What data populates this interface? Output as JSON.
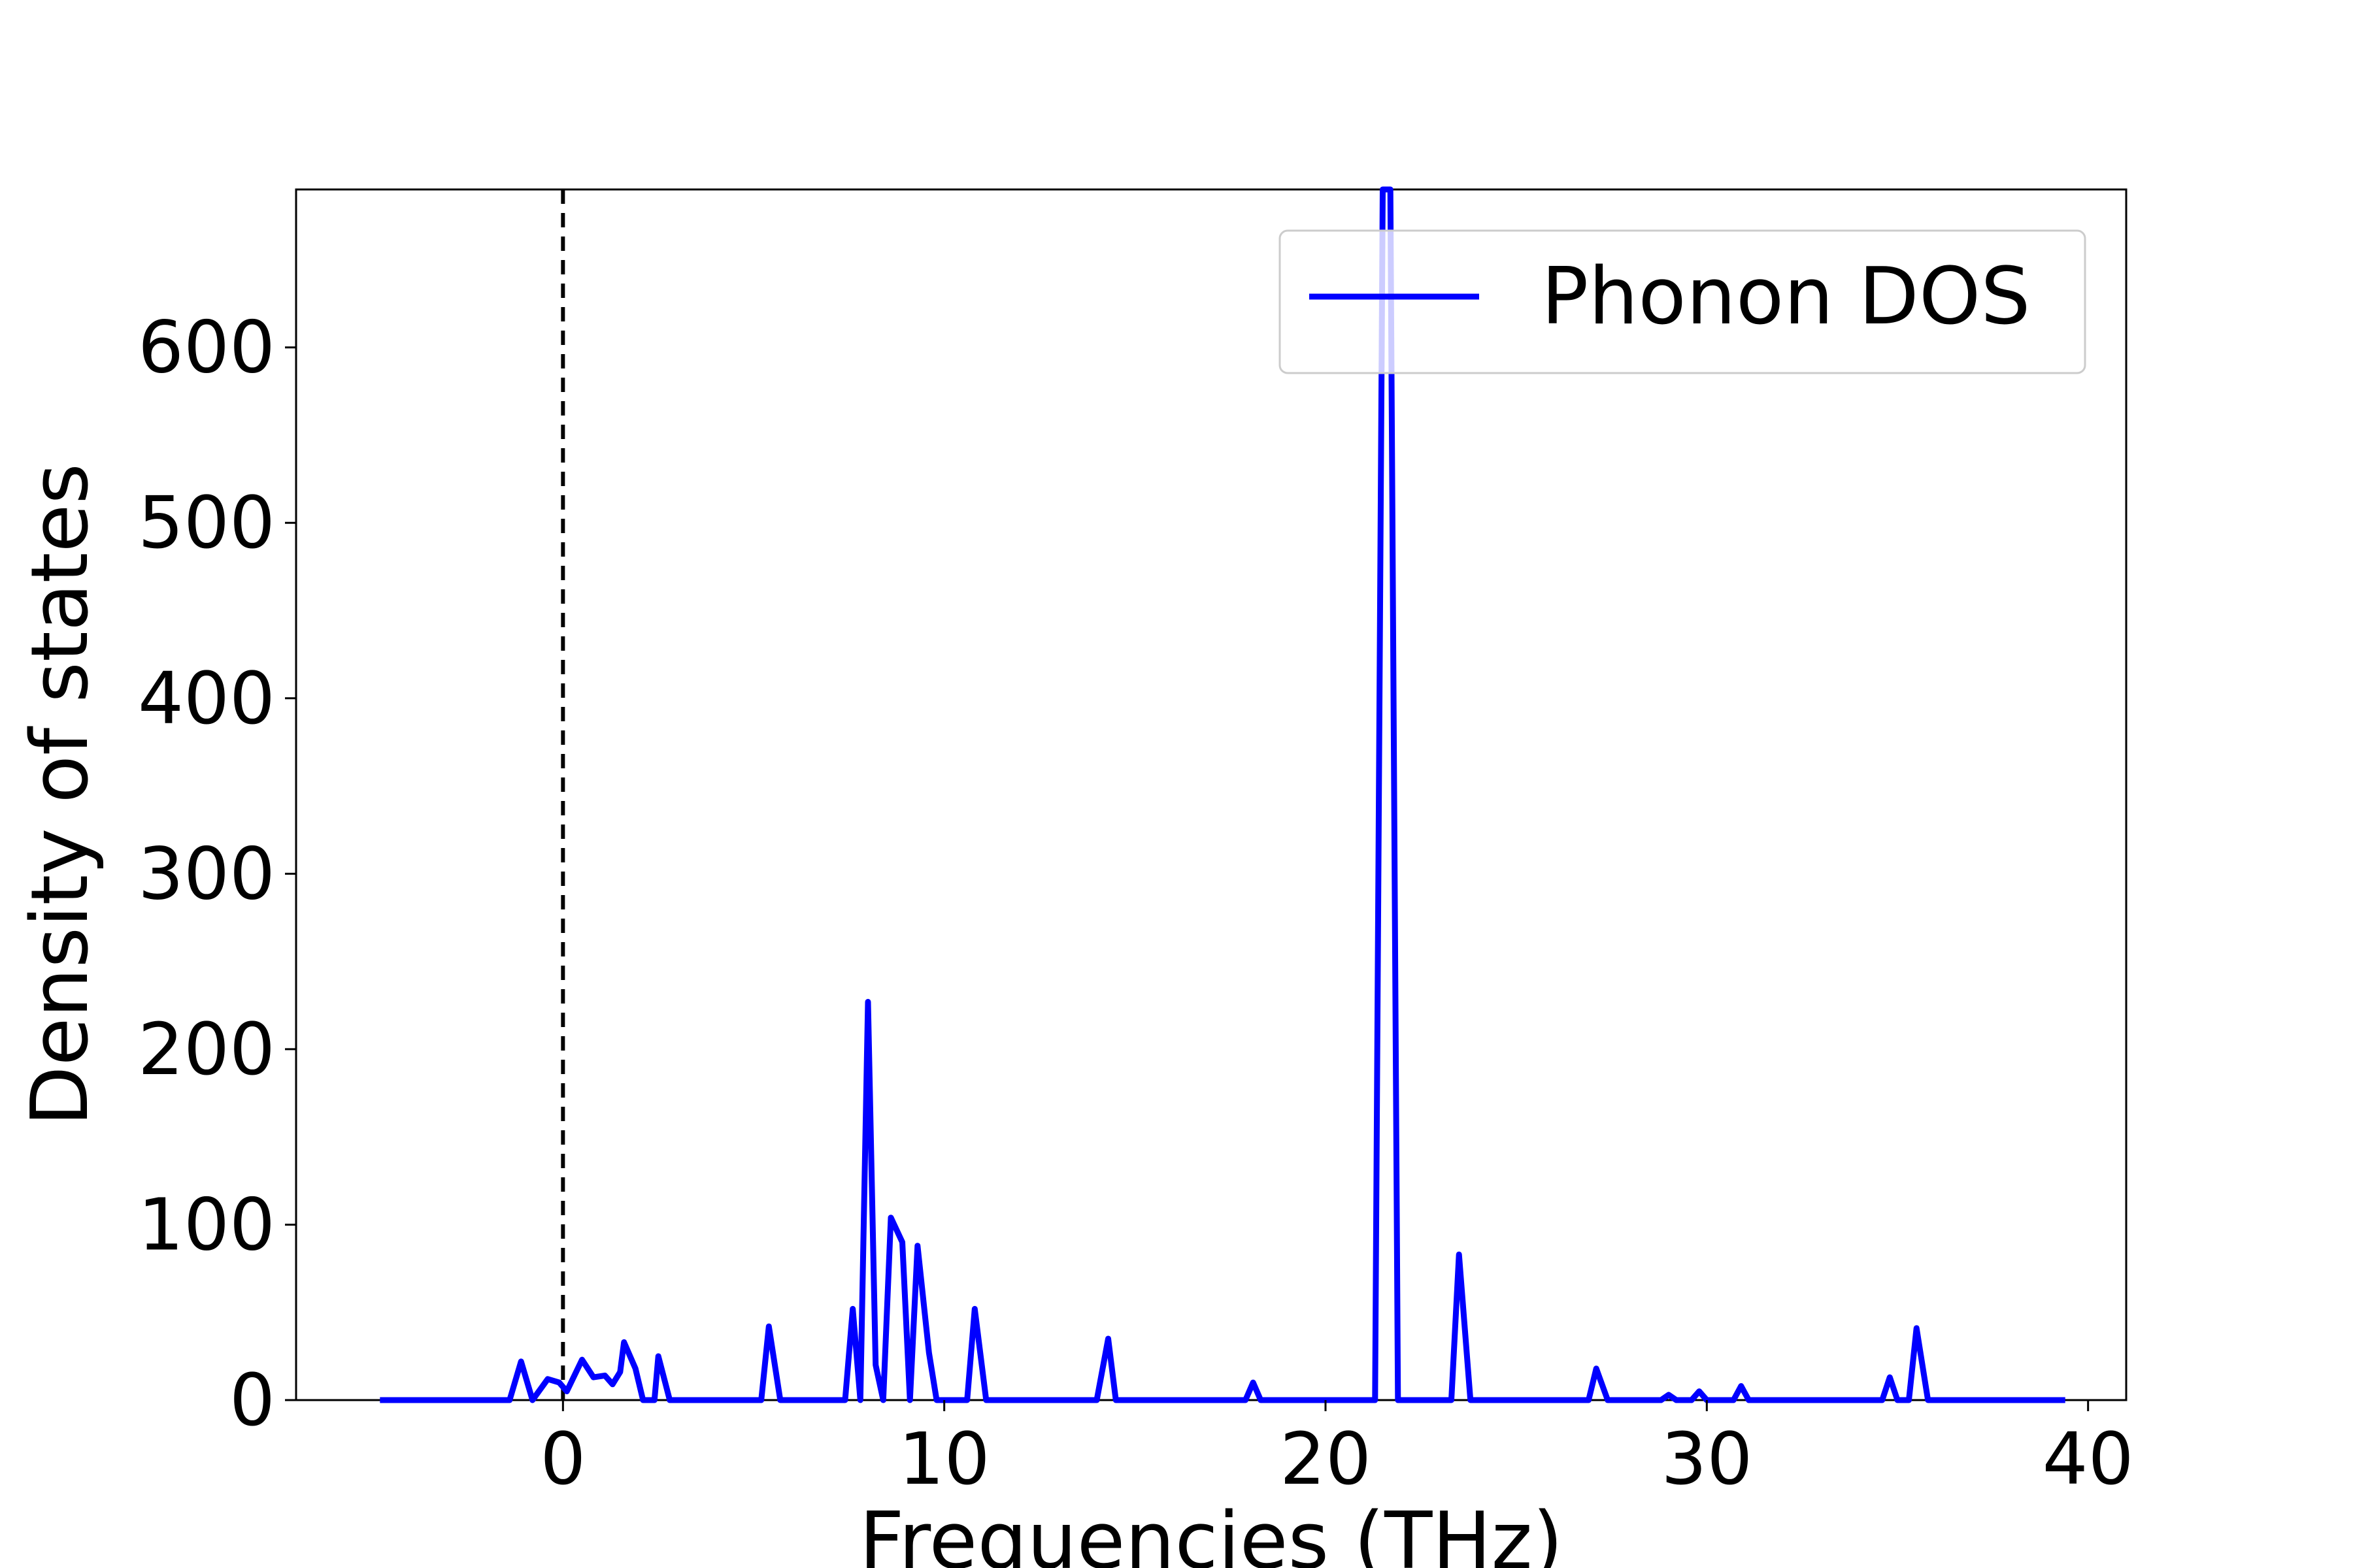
{
  "chart_data": {
    "type": "line",
    "xlabel": "Frequencies (THz)",
    "ylabel": "Density of states",
    "xlim": [
      -7,
      41
    ],
    "ylim": [
      0,
      690
    ],
    "xticks": [
      "0",
      "10",
      "20",
      "30",
      "40"
    ],
    "xtick_values": [
      0,
      10,
      20,
      30,
      40
    ],
    "yticks": [
      "0",
      "100",
      "200",
      "300",
      "400",
      "500",
      "600"
    ],
    "ytick_values": [
      0,
      100,
      200,
      300,
      400,
      500,
      600
    ],
    "grid": false,
    "legend_position": "top-right",
    "reference_line": {
      "x": 0,
      "style": "dashed",
      "color": "#000000"
    },
    "series": [
      {
        "name": "Phonon DOS",
        "color": "#0000ff",
        "points": [
          [
            -4.8,
            0
          ],
          [
            -1.4,
            0
          ],
          [
            -1.1,
            22
          ],
          [
            -0.8,
            0
          ],
          [
            -0.4,
            12
          ],
          [
            -0.1,
            10
          ],
          [
            0.1,
            5
          ],
          [
            0.5,
            23
          ],
          [
            0.8,
            13
          ],
          [
            1.1,
            14
          ],
          [
            1.3,
            9
          ],
          [
            1.5,
            16
          ],
          [
            1.6,
            33
          ],
          [
            1.9,
            18
          ],
          [
            2.1,
            0
          ],
          [
            2.4,
            0
          ],
          [
            2.5,
            25
          ],
          [
            2.8,
            0
          ],
          [
            5.2,
            0
          ],
          [
            5.4,
            42
          ],
          [
            5.7,
            0
          ],
          [
            7.4,
            0
          ],
          [
            7.6,
            52
          ],
          [
            7.8,
            0
          ],
          [
            8.0,
            227
          ],
          [
            8.2,
            20
          ],
          [
            8.4,
            0
          ],
          [
            8.6,
            104
          ],
          [
            8.9,
            90
          ],
          [
            9.1,
            0
          ],
          [
            9.3,
            88
          ],
          [
            9.6,
            27
          ],
          [
            9.8,
            0
          ],
          [
            10.6,
            0
          ],
          [
            10.8,
            52
          ],
          [
            11.1,
            0
          ],
          [
            14.0,
            0
          ],
          [
            14.3,
            35
          ],
          [
            14.5,
            0
          ],
          [
            17.9,
            0
          ],
          [
            18.1,
            10
          ],
          [
            18.3,
            0
          ],
          [
            21.3,
            0
          ],
          [
            21.5,
            690
          ],
          [
            21.7,
            690
          ],
          [
            21.9,
            0
          ],
          [
            23.3,
            0
          ],
          [
            23.5,
            83
          ],
          [
            23.8,
            0
          ],
          [
            26.9,
            0
          ],
          [
            27.1,
            18
          ],
          [
            27.4,
            0
          ],
          [
            28.8,
            0
          ],
          [
            29.0,
            3
          ],
          [
            29.2,
            0
          ],
          [
            29.6,
            0
          ],
          [
            29.8,
            5
          ],
          [
            30.0,
            0
          ],
          [
            30.7,
            0
          ],
          [
            30.9,
            8
          ],
          [
            31.1,
            0
          ],
          [
            34.6,
            0
          ],
          [
            34.8,
            13
          ],
          [
            35.0,
            0
          ],
          [
            35.3,
            0
          ],
          [
            35.5,
            41
          ],
          [
            35.8,
            0
          ],
          [
            39.4,
            0
          ]
        ]
      }
    ]
  }
}
